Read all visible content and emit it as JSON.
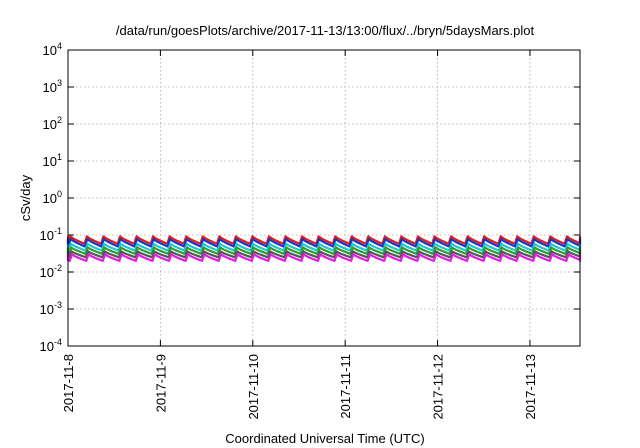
{
  "chart_data": {
    "type": "line",
    "title": "/data/run/goesPlots/archive/2017-11-13/13:00/flux/../bryn/5daysMars.plot",
    "xlabel": "Coordinated Universal Time (UTC)",
    "ylabel": "cSv/day",
    "y_scale": "log",
    "ylim": [
      0.0001,
      10000
    ],
    "y_tick_labels": [
      {
        "exp": "-4",
        "value": 0.0001
      },
      {
        "exp": "-3",
        "value": 0.001
      },
      {
        "exp": "-2",
        "value": 0.01
      },
      {
        "exp": "-1",
        "value": 0.1
      },
      {
        "exp": "0",
        "value": 1
      },
      {
        "exp": "1",
        "value": 10
      },
      {
        "exp": "2",
        "value": 100
      },
      {
        "exp": "3",
        "value": 1000
      },
      {
        "exp": "4",
        "value": 10000
      }
    ],
    "y_tick_base": "10",
    "x_range": [
      "2017-11-08",
      "2017-11-13T13:00"
    ],
    "x_tick_labels": [
      "2017-11-8",
      "2017-11-9",
      "2017-11-10",
      "2017-11-11",
      "2017-11-12",
      "2017-11-13"
    ],
    "x_tick_dates": [
      "2017-11-08",
      "2017-11-09",
      "2017-11-10",
      "2017-11-11",
      "2017-11-12",
      "2017-11-13"
    ],
    "grid": true,
    "cycle_period_hours": 4.3,
    "series": [
      {
        "color": "#e11d1d",
        "peak": 0.092,
        "trough": 0.058
      },
      {
        "color": "#1a35c9",
        "peak": 0.078,
        "trough": 0.049
      },
      {
        "color": "#1ec8c8",
        "peak": 0.058,
        "trough": 0.038
      },
      {
        "color": "#2f9a2f",
        "peak": 0.046,
        "trough": 0.031
      },
      {
        "color": "#555555",
        "peak": 0.036,
        "trough": 0.025
      },
      {
        "color": "#e21ee2",
        "peak": 0.03,
        "trough": 0.02
      }
    ]
  }
}
